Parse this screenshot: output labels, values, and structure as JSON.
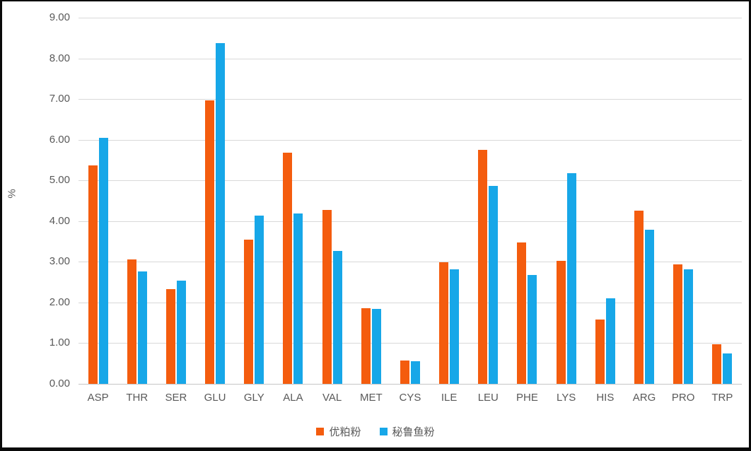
{
  "colors": {
    "background": "#ffffff",
    "frame_border": "#0a0a0a",
    "gridline": "#d9d9d9",
    "axis_text": "#595959",
    "series_orange": "#f45c0e",
    "series_blue": "#17a7e8"
  },
  "chart_data": {
    "type": "bar",
    "title": "",
    "xlabel": "",
    "ylabel": "%",
    "ylim": [
      0,
      9
    ],
    "ytick_step": 1,
    "ytick_labels": [
      "0.00",
      "1.00",
      "2.00",
      "3.00",
      "4.00",
      "5.00",
      "6.00",
      "7.00",
      "8.00",
      "9.00"
    ],
    "grid": true,
    "legend_position": "bottom",
    "categories": [
      "ASP",
      "THR",
      "SER",
      "GLU",
      "GLY",
      "ALA",
      "VAL",
      "MET",
      "CYS",
      "ILE",
      "LEU",
      "PHE",
      "LYS",
      "HIS",
      "ARG",
      "PRO",
      "TRP"
    ],
    "series": [
      {
        "name": "优粕粉",
        "color": "#f45c0e",
        "values": [
          5.37,
          3.06,
          2.32,
          6.97,
          3.55,
          5.69,
          4.27,
          1.86,
          0.57,
          2.99,
          5.75,
          3.47,
          3.03,
          1.58,
          4.26,
          2.93,
          0.97
        ]
      },
      {
        "name": "秘鲁鱼粉",
        "color": "#17a7e8",
        "values": [
          6.05,
          2.77,
          2.53,
          8.37,
          4.14,
          4.19,
          3.27,
          1.84,
          0.56,
          2.81,
          4.87,
          2.67,
          5.18,
          2.11,
          3.79,
          2.81,
          0.74
        ]
      }
    ]
  }
}
